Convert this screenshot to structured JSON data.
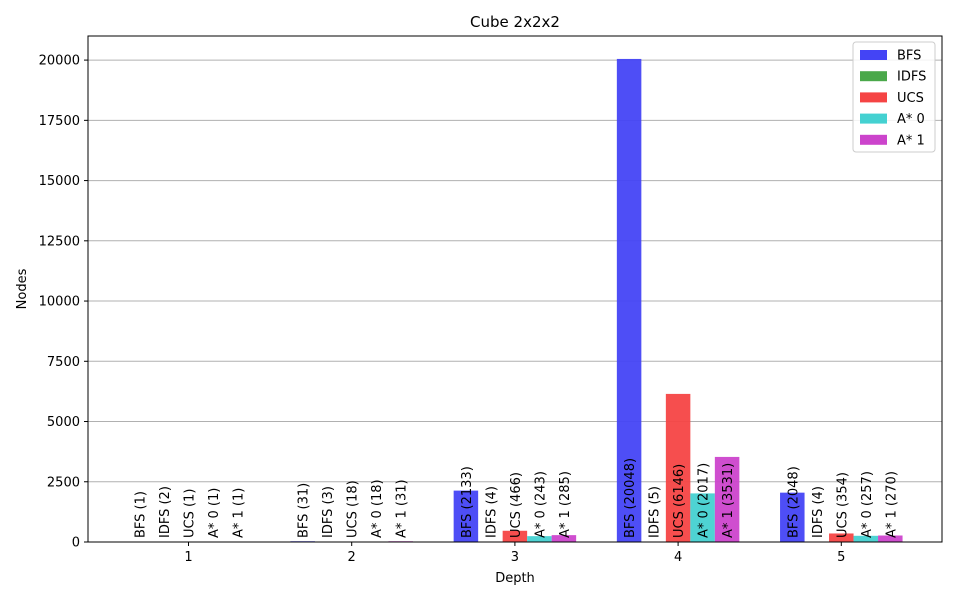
{
  "chart_data": {
    "type": "bar",
    "title": "Cube 2x2x2",
    "xlabel": "Depth",
    "ylabel": "Nodes",
    "categories": [
      "1",
      "2",
      "3",
      "4",
      "5"
    ],
    "ylim": [
      0,
      21000
    ],
    "yticks": [
      0,
      2500,
      5000,
      7500,
      10000,
      12500,
      15000,
      17500,
      20000
    ],
    "grid": "y",
    "legend_position": "top-right",
    "series": [
      {
        "name": "BFS",
        "color": "#4444f5",
        "values": [
          1,
          31,
          2133,
          20048,
          2048
        ],
        "labels": [
          "BFS (1)",
          "BFS (31)",
          "BFS (2133)",
          "BFS (20048)",
          "BFS (2048)"
        ]
      },
      {
        "name": "IDFS",
        "color": "#4aa84a",
        "values": [
          2,
          3,
          4,
          5,
          4
        ],
        "labels": [
          "IDFS (2)",
          "IDFS (3)",
          "IDFS (4)",
          "IDFS (5)",
          "IDFS (4)"
        ]
      },
      {
        "name": "UCS",
        "color": "#f54444",
        "values": [
          1,
          18,
          466,
          6146,
          354
        ],
        "labels": [
          "UCS (1)",
          "UCS (18)",
          "UCS (466)",
          "UCS (6146)",
          "UCS (354)"
        ]
      },
      {
        "name": "A* 0",
        "color": "#44d1d1",
        "values": [
          1,
          18,
          243,
          2017,
          257
        ],
        "labels": [
          "A* 0 (1)",
          "A* 0 (18)",
          "A* 0 (243)",
          "A* 0 (2017)",
          "A* 0 (257)"
        ]
      },
      {
        "name": "A* 1",
        "color": "#cc44cc",
        "values": [
          1,
          31,
          285,
          3531,
          270
        ],
        "labels": [
          "A* 1 (1)",
          "A* 1 (31)",
          "A* 1 (285)",
          "A* 1 (3531)",
          "A* 1 (270)"
        ]
      }
    ]
  }
}
